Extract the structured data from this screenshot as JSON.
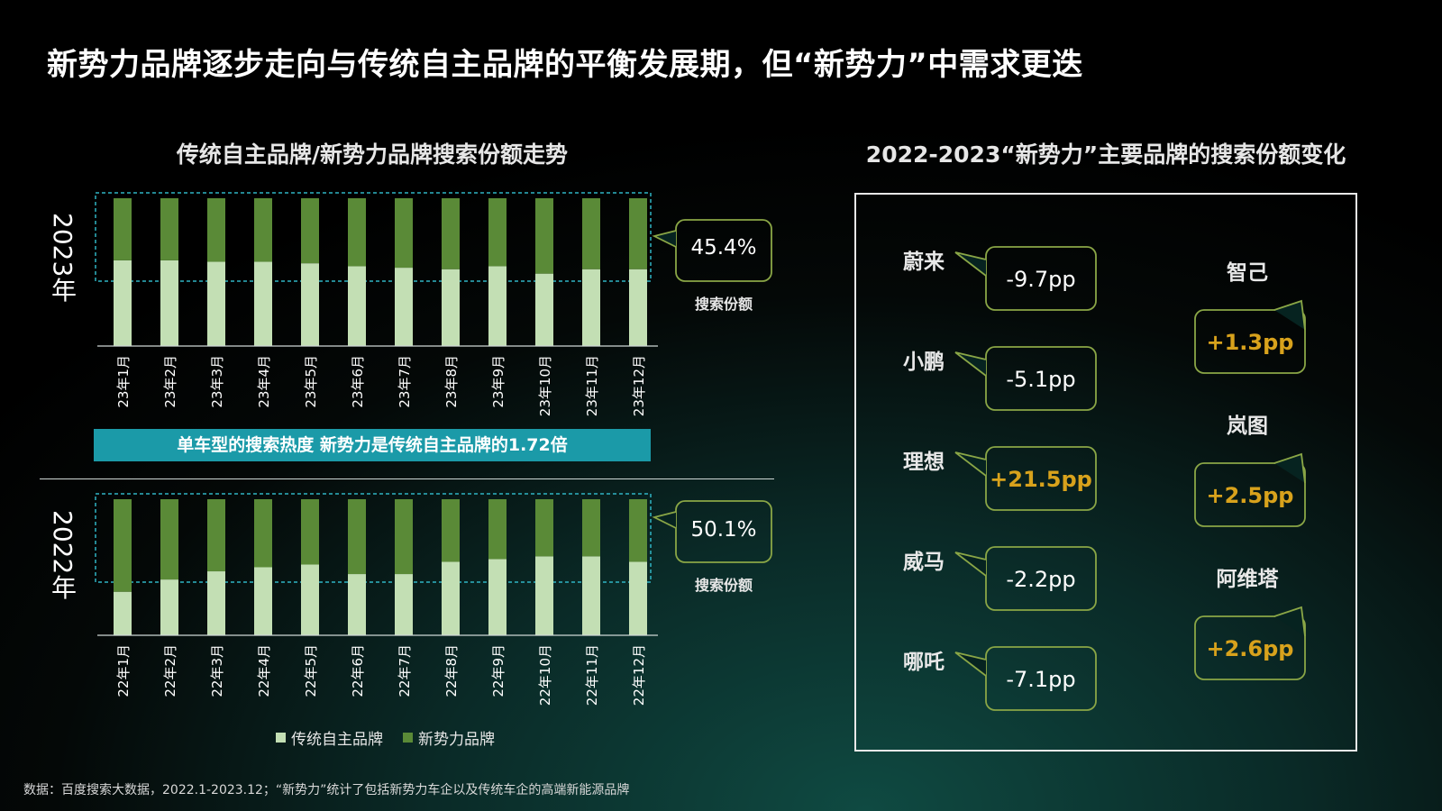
{
  "page_title": "新势力品牌逐步走向与传统自主品牌的平衡发展期，但“新势力”中需求更迭",
  "footnote": "数据：百度搜索大数据，2022.1-2023.12；“新势力”统计了包括新势力车企以及传统车企的高端新能源品牌",
  "colors": {
    "traditional": "#c3dfb4",
    "new_force": "#5a8a37",
    "banner": "#1b9aa8",
    "highlight": "#d8a21c",
    "bubble_border": "#8aa646",
    "dashed_box": "#2fb4c3"
  },
  "chart_data": [
    {
      "type": "bar",
      "stacked": true,
      "title": "传统自主品牌/新势力品牌搜索份额走势",
      "panel_label": "2023年",
      "categories": [
        "23年1月",
        "23年2月",
        "23年3月",
        "23年4月",
        "23年5月",
        "23年6月",
        "23年7月",
        "23年8月",
        "23年9月",
        "23年10月",
        "23年11月",
        "23年12月"
      ],
      "series": [
        {
          "name": "传统自主品牌",
          "values": [
            58,
            58,
            57,
            57,
            56,
            54,
            53,
            52,
            54,
            49,
            52,
            52
          ]
        },
        {
          "name": "新势力品牌",
          "values": [
            42,
            42,
            43,
            43,
            44,
            46,
            47,
            48,
            46,
            51,
            48,
            48
          ]
        }
      ],
      "ylim": [
        0,
        100
      ],
      "callout": {
        "value": "45.4%",
        "caption": "搜索份额"
      }
    },
    {
      "type": "bar",
      "stacked": true,
      "panel_label": "2022年",
      "categories": [
        "22年1月",
        "22年2月",
        "22年3月",
        "22年4月",
        "22年5月",
        "22年6月",
        "22年7月",
        "22年8月",
        "22年9月",
        "22年10月",
        "22年11月",
        "22年12月"
      ],
      "series": [
        {
          "name": "传统自主品牌",
          "values": [
            32,
            41,
            47,
            50,
            52,
            45,
            45,
            54,
            56,
            58,
            58,
            54
          ]
        },
        {
          "name": "新势力品牌",
          "values": [
            68,
            59,
            53,
            50,
            48,
            55,
            55,
            46,
            44,
            42,
            42,
            46
          ]
        }
      ],
      "ylim": [
        0,
        100
      ],
      "callout": {
        "value": "50.1%",
        "caption": "搜索份额"
      }
    },
    {
      "type": "table",
      "title": "2022-2023“新势力”主要品牌的搜索份额变化",
      "brands": [
        {
          "name": "蔚来",
          "change": "-9.7pp",
          "positive": false
        },
        {
          "name": "小鹏",
          "change": "-5.1pp",
          "positive": false
        },
        {
          "name": "理想",
          "change": "+21.5pp",
          "positive": true
        },
        {
          "name": "威马",
          "change": "-2.2pp",
          "positive": false
        },
        {
          "name": "哪吒",
          "change": "-7.1pp",
          "positive": false
        },
        {
          "name": "智己",
          "change": "+1.3pp",
          "positive": true
        },
        {
          "name": "岚图",
          "change": "+2.5pp",
          "positive": true
        },
        {
          "name": "阿维塔",
          "change": "+2.6pp",
          "positive": true
        }
      ]
    }
  ],
  "banner_text": "单车型的搜索热度 新势力是传统自主品牌的1.72倍",
  "legend": [
    {
      "label": "传统自主品牌",
      "color": "#c3dfb4"
    },
    {
      "label": "新势力品牌",
      "color": "#5a8a37"
    }
  ]
}
